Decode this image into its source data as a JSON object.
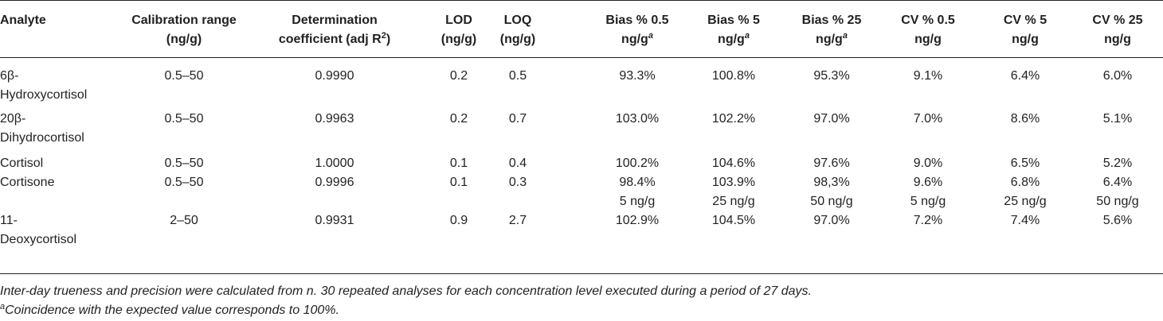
{
  "table": {
    "headers": {
      "analyte": "Analyte",
      "calibration": [
        "Calibration range",
        "(ng/g)"
      ],
      "determination": [
        "Determination",
        "coefficient (adj R",
        "2",
        ")"
      ],
      "lod": [
        "LOD",
        "(ng/g)"
      ],
      "loq": [
        "LOQ",
        "(ng/g)"
      ],
      "bias05": [
        "Bias % 0.5",
        "ng/g",
        "a"
      ],
      "bias5": [
        "Bias % 5",
        "ng/g",
        "a"
      ],
      "bias25": [
        "Bias % 25",
        "ng/g",
        "a"
      ],
      "cv05": [
        "CV % 0.5",
        "ng/g"
      ],
      "cv5": [
        "CV % 5",
        "ng/g"
      ],
      "cv25": [
        "CV % 25",
        "ng/g"
      ]
    },
    "rows": [
      {
        "analyte": [
          "6β-",
          "Hydroxycortisol"
        ],
        "calibration": "0.5–50",
        "determination": "0.9990",
        "lod": "0.2",
        "loq": "0.5",
        "bias05": "93.3%",
        "bias5": "100.8%",
        "bias25": "95.3%",
        "cv05": "9.1%",
        "cv5": "6.4%",
        "cv25": "6.0%"
      },
      {
        "analyte": [
          "20β-",
          "Dihydrocortisol"
        ],
        "calibration": "0.5–50",
        "determination": "0.9963",
        "lod": "0.2",
        "loq": "0.7",
        "bias05": "103.0%",
        "bias5": "102.2%",
        "bias25": "97.0%",
        "cv05": "7.0%",
        "cv5": "8.6%",
        "cv25": "5.1%"
      },
      {
        "analyte": [
          "Cortisol"
        ],
        "calibration": "0.5–50",
        "determination": "1.0000",
        "lod": "0.1",
        "loq": "0.4",
        "bias05": "100.2%",
        "bias5": "104.6%",
        "bias25": "97.6%",
        "cv05": "9.0%",
        "cv5": "6.5%",
        "cv25": "5.2%"
      },
      {
        "analyte": [
          "Cortisone"
        ],
        "calibration": "0.5–50",
        "determination": "0.9996",
        "lod": "0.1",
        "loq": "0.3",
        "bias05": "98.4%",
        "bias5": "103.9%",
        "bias25": "98,3%",
        "cv05": "9.6%",
        "cv5": "6.8%",
        "cv25": "6.4%"
      },
      {
        "analyte": [
          ""
        ],
        "calibration": "",
        "determination": "",
        "lod": "",
        "loq": "",
        "bias05": "5 ng/g",
        "bias5": "25 ng/g",
        "bias25": "50 ng/g",
        "cv05": "5 ng/g",
        "cv5": "25 ng/g",
        "cv25": "50 ng/g"
      },
      {
        "analyte": [
          "11-",
          "Deoxycortisol"
        ],
        "calibration": "2–50",
        "determination": "0.9931",
        "lod": "0.9",
        "loq": "2.7",
        "bias05": "102.9%",
        "bias5": "104.5%",
        "bias25": "97.0%",
        "cv05": "7.2%",
        "cv5": "7.4%",
        "cv25": "5.6%"
      }
    ]
  },
  "footnotes": {
    "note1": "Inter-day trueness and precision were calculated from n. 30 repeated analyses for each concentration level executed during a period of 27 days.",
    "note2_sup": "a",
    "note2": "Coincidence with the expected value corresponds to 100%."
  }
}
